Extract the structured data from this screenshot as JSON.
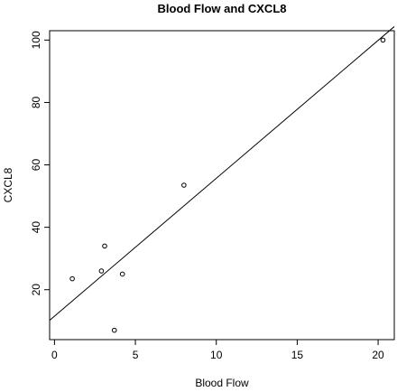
{
  "chart_data": {
    "type": "scatter",
    "title": "Blood Flow and CXCL8",
    "xlabel": "Blood Flow",
    "ylabel": "CXCL8",
    "xlim": [
      -0.3,
      21
    ],
    "ylim": [
      4,
      103
    ],
    "x_ticks": [
      0,
      5,
      10,
      15,
      20
    ],
    "y_ticks": [
      20,
      40,
      60,
      80,
      100
    ],
    "grid": false,
    "points": [
      {
        "x": 1.1,
        "y": 23.5
      },
      {
        "x": 2.9,
        "y": 26.0
      },
      {
        "x": 3.1,
        "y": 34.0
      },
      {
        "x": 3.7,
        "y": 7.0
      },
      {
        "x": 4.2,
        "y": 25.0
      },
      {
        "x": 8.0,
        "y": 53.5
      },
      {
        "x": 20.3,
        "y": 100.0
      }
    ],
    "fit_line": {
      "intercept": 11.5,
      "slope": 4.42
    }
  }
}
